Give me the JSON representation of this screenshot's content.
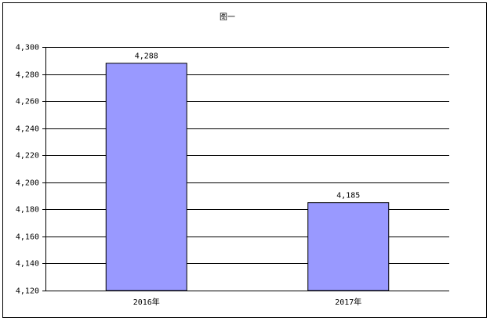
{
  "chart_data": {
    "type": "bar",
    "title": "图一",
    "categories": [
      "2016年",
      "2017年"
    ],
    "values": [
      4288,
      4185
    ],
    "value_labels": [
      "4,288",
      "4,185"
    ],
    "color": "#9999ff",
    "ylim": [
      4120,
      4300
    ],
    "yticks": [
      {
        "value": 4120,
        "label": "4,120"
      },
      {
        "value": 4140,
        "label": "4,140"
      },
      {
        "value": 4160,
        "label": "4,160"
      },
      {
        "value": 4180,
        "label": "4,180"
      },
      {
        "value": 4200,
        "label": "4,200"
      },
      {
        "value": 4220,
        "label": "4,220"
      },
      {
        "value": 4240,
        "label": "4,240"
      },
      {
        "value": 4260,
        "label": "4,260"
      },
      {
        "value": 4280,
        "label": "4,280"
      },
      {
        "value": 4300,
        "label": "4,300"
      }
    ],
    "grid": true
  }
}
